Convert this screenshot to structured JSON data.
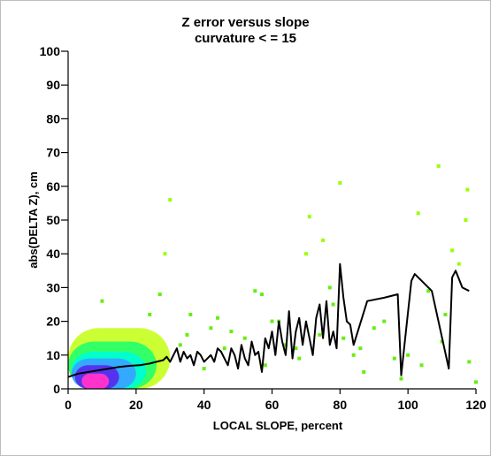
{
  "chart_data": {
    "type": "scatter",
    "title": "Z error versus slope",
    "subtitle": "curvature < = 15",
    "xlabel": "LOCAL SLOPE, percent",
    "ylabel": "abs(DELTA Z), cm",
    "xlim": [
      0,
      120
    ],
    "ylim": [
      0,
      100
    ],
    "x_ticks": [
      0,
      20,
      40,
      60,
      80,
      100,
      120
    ],
    "y_ticks": [
      0,
      10,
      20,
      30,
      40,
      50,
      60,
      70,
      80,
      90,
      100
    ],
    "grid": false,
    "legend": "none",
    "density_colors": [
      "#ff00cc",
      "#3355ff",
      "#00ccff",
      "#00ff99",
      "#66ff33",
      "#ccff00"
    ],
    "mean_line_color": "#000000",
    "scatter": {
      "x": [
        28.5,
        30,
        36,
        42,
        48,
        55,
        57,
        60,
        64,
        67,
        70,
        71,
        75,
        77,
        80,
        81,
        84,
        87,
        93,
        96,
        100,
        103,
        106,
        109,
        111,
        113,
        115,
        117,
        117.5,
        120,
        10,
        24,
        27,
        33,
        40,
        46,
        52,
        58,
        62,
        68,
        74,
        78,
        86,
        90,
        98,
        104,
        110,
        118,
        35,
        44
      ],
      "y": [
        40,
        56,
        22,
        18,
        17,
        29,
        28,
        20,
        13,
        12,
        40,
        51,
        44,
        30,
        61,
        15,
        10,
        5,
        20,
        9,
        10,
        52,
        29,
        66,
        22,
        41,
        37,
        50,
        59,
        2,
        26,
        22,
        28,
        13,
        6,
        12,
        15,
        7,
        20,
        9,
        16,
        25,
        12,
        18,
        3,
        7,
        14,
        8,
        16,
        21
      ]
    },
    "mean_line": {
      "x": [
        0,
        3,
        6,
        9,
        12,
        15,
        18,
        21,
        24,
        26,
        28,
        29,
        30,
        31,
        32,
        33,
        34,
        35,
        36,
        37,
        38,
        39,
        40,
        41,
        42,
        43,
        44,
        45,
        46,
        47,
        48,
        49,
        50,
        51,
        52,
        53,
        54,
        55,
        56,
        57,
        58,
        59,
        60,
        61,
        62,
        63,
        64,
        65,
        66,
        67,
        68,
        69,
        70,
        71,
        72,
        73,
        74,
        75,
        76,
        77,
        78,
        79,
        80,
        81,
        82,
        83,
        84,
        88,
        93,
        97,
        98,
        101,
        102,
        107,
        112,
        113,
        114,
        116,
        118
      ],
      "y": [
        3.5,
        4.5,
        5,
        5.5,
        6,
        6.5,
        6.8,
        7,
        7.5,
        8,
        8.5,
        9.5,
        8,
        10,
        12,
        8,
        11,
        9,
        10,
        7,
        11,
        10,
        8,
        9,
        10,
        8,
        12,
        11,
        9,
        7,
        12,
        10,
        6,
        13,
        9,
        7,
        14,
        10,
        11,
        5,
        15,
        12,
        17,
        10,
        20,
        14,
        10,
        23,
        9,
        17,
        21,
        13,
        20,
        15,
        10,
        21,
        25,
        15,
        26,
        13,
        17,
        12,
        37,
        27,
        20,
        19,
        13,
        26,
        27,
        28,
        4,
        32,
        34,
        29,
        6,
        33,
        35,
        30,
        29
      ]
    },
    "density_layers": [
      {
        "x0": 0,
        "x1": 30,
        "y0": 0,
        "y1": 18,
        "level": 5
      },
      {
        "x0": 0,
        "x1": 26,
        "y0": 0,
        "y1": 14,
        "level": 4
      },
      {
        "x0": 1,
        "x1": 23,
        "y0": 0,
        "y1": 11,
        "level": 3
      },
      {
        "x0": 1,
        "x1": 20,
        "y0": 0,
        "y1": 9,
        "level": 2
      },
      {
        "x0": 2,
        "x1": 15,
        "y0": 0,
        "y1": 7,
        "level": 1
      },
      {
        "x0": 4,
        "x1": 12,
        "y0": 0,
        "y1": 4.5,
        "level": 0
      }
    ]
  }
}
